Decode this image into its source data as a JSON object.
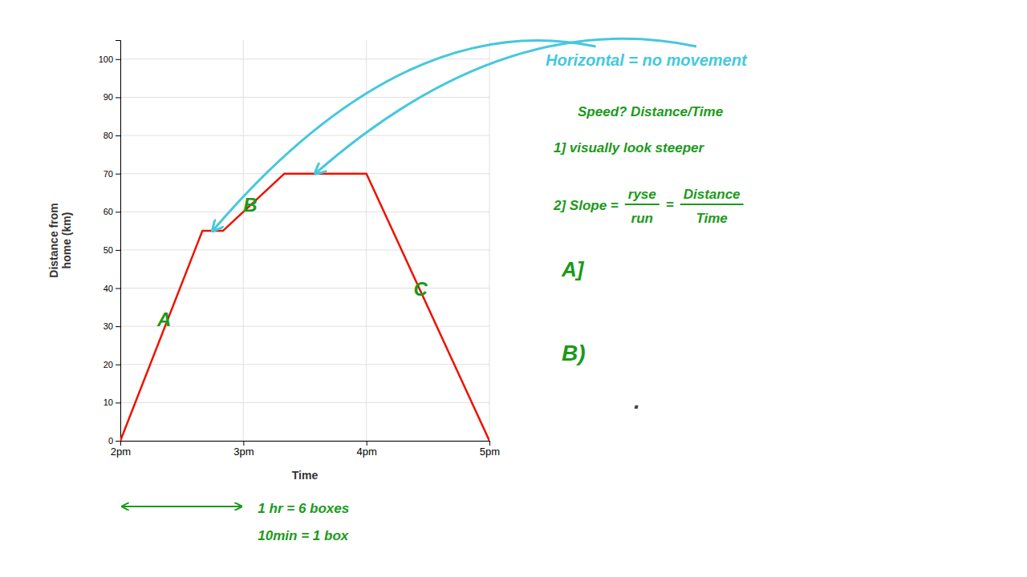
{
  "chart_data": {
    "type": "line",
    "xlabel": "Time",
    "ylabel": "Distance from\nhome (km)",
    "x": [
      0,
      40,
      50,
      80,
      120,
      180
    ],
    "values": [
      0,
      55,
      55,
      70,
      70,
      0
    ],
    "color": "#ee1100",
    "xlim": [
      0,
      180
    ],
    "ylim": [
      0,
      105
    ],
    "xticks": [
      {
        "value": 0,
        "label": "2pm"
      },
      {
        "value": 60,
        "label": "3pm"
      },
      {
        "value": 120,
        "label": "4pm"
      },
      {
        "value": 180,
        "label": "5pm"
      }
    ],
    "yticks": [
      0,
      10,
      20,
      30,
      40,
      50,
      60,
      70,
      80,
      90,
      100
    ],
    "grid": true,
    "annotations": [
      {
        "text": "A",
        "x": 18,
        "y": 30,
        "color": "#1a9a1a"
      },
      {
        "text": "B",
        "x": 60,
        "y": 60,
        "color": "#1a9a1a"
      },
      {
        "text": "C",
        "x": 143,
        "y": 38,
        "color": "#1a9a1a"
      },
      {
        "text": "Horizontal = no movement",
        "color": "#45c8de",
        "arrows": [
          {
            "x": 95,
            "y": 70
          },
          {
            "x": 45,
            "y": 55
          }
        ]
      },
      {
        "text": "Speed?  Distance/Time",
        "color": "#1a9a1a"
      },
      {
        "text": "1] visually look steeper",
        "color": "#1a9a1a"
      },
      {
        "text": "2] Slope = ",
        "color": "#1a9a1a",
        "fractions": [
          {
            "top": "ryse",
            "bottom": "run"
          },
          {
            "top": "Distance",
            "bottom": "Time"
          }
        ],
        "separator": "="
      },
      {
        "text": "A]",
        "color": "#1a9a1a"
      },
      {
        "text": "B)",
        "color": "#1a9a1a"
      },
      {
        "text": ".",
        "color": "#444444"
      },
      {
        "text": "1 hr = 6 boxes",
        "color": "#1a9a1a",
        "span": [
          0,
          60
        ]
      },
      {
        "text": "10min = 1 box",
        "color": "#1a9a1a"
      }
    ]
  }
}
